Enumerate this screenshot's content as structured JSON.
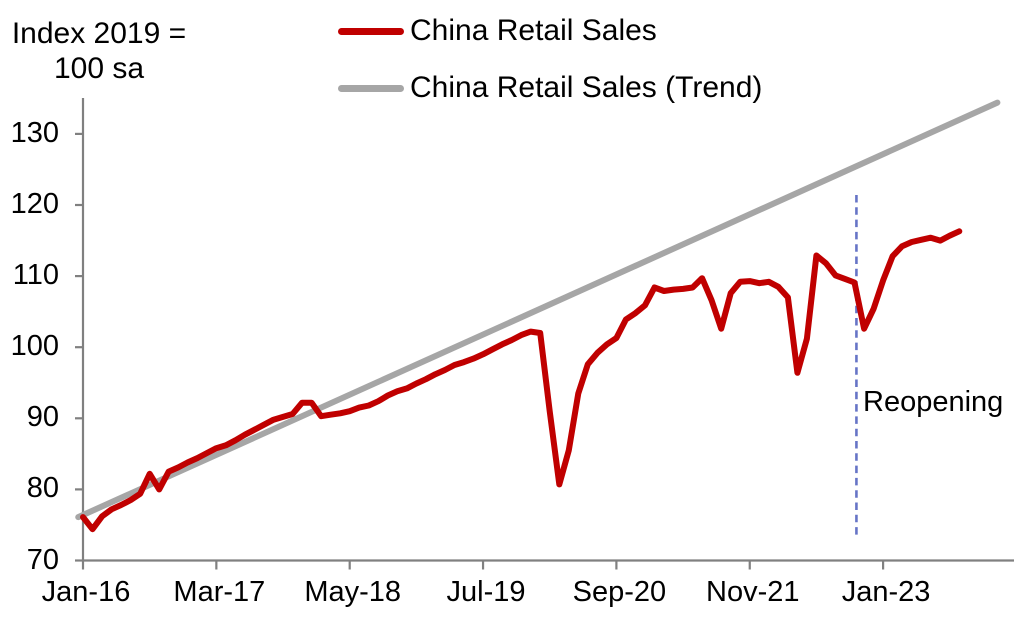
{
  "axis_title": {
    "line1": "Index 2019 =",
    "line2": "100 sa"
  },
  "legend": {
    "items": [
      {
        "label": "China Retail Sales",
        "color": "#C00000"
      },
      {
        "label": "China Retail Sales (Trend)",
        "color": "#A6A6A6"
      }
    ]
  },
  "annotation": {
    "label": "Reopening"
  },
  "colors": {
    "retail_sales_line": "#C00000",
    "trend_line": "#A6A6A6",
    "event_line": "#6674C6",
    "axis": "#808080",
    "text": "#000000"
  },
  "chart_data": {
    "type": "line",
    "title": "",
    "xlabel": "",
    "ylabel": "Index 2019 = 100 sa",
    "grid": false,
    "legend_position": "top",
    "x_axis": {
      "frequency": "monthly",
      "start_label": "Jan-16",
      "end_label": "Sep-23",
      "tick_labels": [
        "Jan-16",
        "Mar-17",
        "May-18",
        "Jul-19",
        "Sep-20",
        "Nov-21",
        "Jan-23"
      ],
      "tick_month_indices": [
        0,
        14,
        28,
        42,
        56,
        70,
        84
      ]
    },
    "y_axis": {
      "ticks": [
        70,
        80,
        90,
        100,
        110,
        120,
        130
      ],
      "ylim": [
        70,
        135
      ]
    },
    "series": [
      {
        "name": "China Retail Sales",
        "color": "#C00000",
        "start": "Jan-16",
        "values": [
          76.1,
          74.4,
          76.2,
          77.2,
          77.8,
          78.5,
          79.4,
          82.2,
          80.0,
          82.5,
          83.1,
          83.8,
          84.4,
          85.1,
          85.8,
          86.2,
          86.9,
          87.7,
          88.4,
          89.1,
          89.8,
          90.2,
          90.6,
          92.2,
          92.2,
          90.3,
          90.5,
          90.7,
          91.0,
          91.5,
          91.8,
          92.4,
          93.2,
          93.8,
          94.2,
          94.9,
          95.5,
          96.2,
          96.8,
          97.5,
          97.9,
          98.4,
          99.0,
          99.7,
          100.4,
          101.0,
          101.7,
          102.2,
          102.0,
          91.0,
          80.7,
          85.5,
          93.5,
          97.6,
          99.2,
          100.4,
          101.3,
          103.9,
          104.8,
          105.9,
          108.4,
          107.9,
          108.1,
          108.2,
          108.4,
          109.7,
          106.6,
          102.6,
          107.6,
          109.2,
          109.3,
          109.0,
          109.2,
          108.5,
          107.0,
          96.4,
          101.2,
          112.9,
          111.8,
          110.1,
          109.6,
          109.1,
          102.6,
          105.4,
          109.4,
          112.8,
          114.2,
          114.8,
          115.1,
          115.4,
          115.0,
          115.7,
          116.3
        ]
      },
      {
        "name": "China Retail Sales (Trend)",
        "color": "#A6A6A6",
        "shape": "straight-line",
        "start_month_index": -0.5,
        "start_value": 76.1,
        "end_month_index": 96,
        "end_value": 134.4
      }
    ],
    "event_line": {
      "label": "Reopening",
      "month_index": 81.2,
      "approx_date": "Oct/Nov-22",
      "color": "#6674C6",
      "style": "dashed"
    }
  }
}
